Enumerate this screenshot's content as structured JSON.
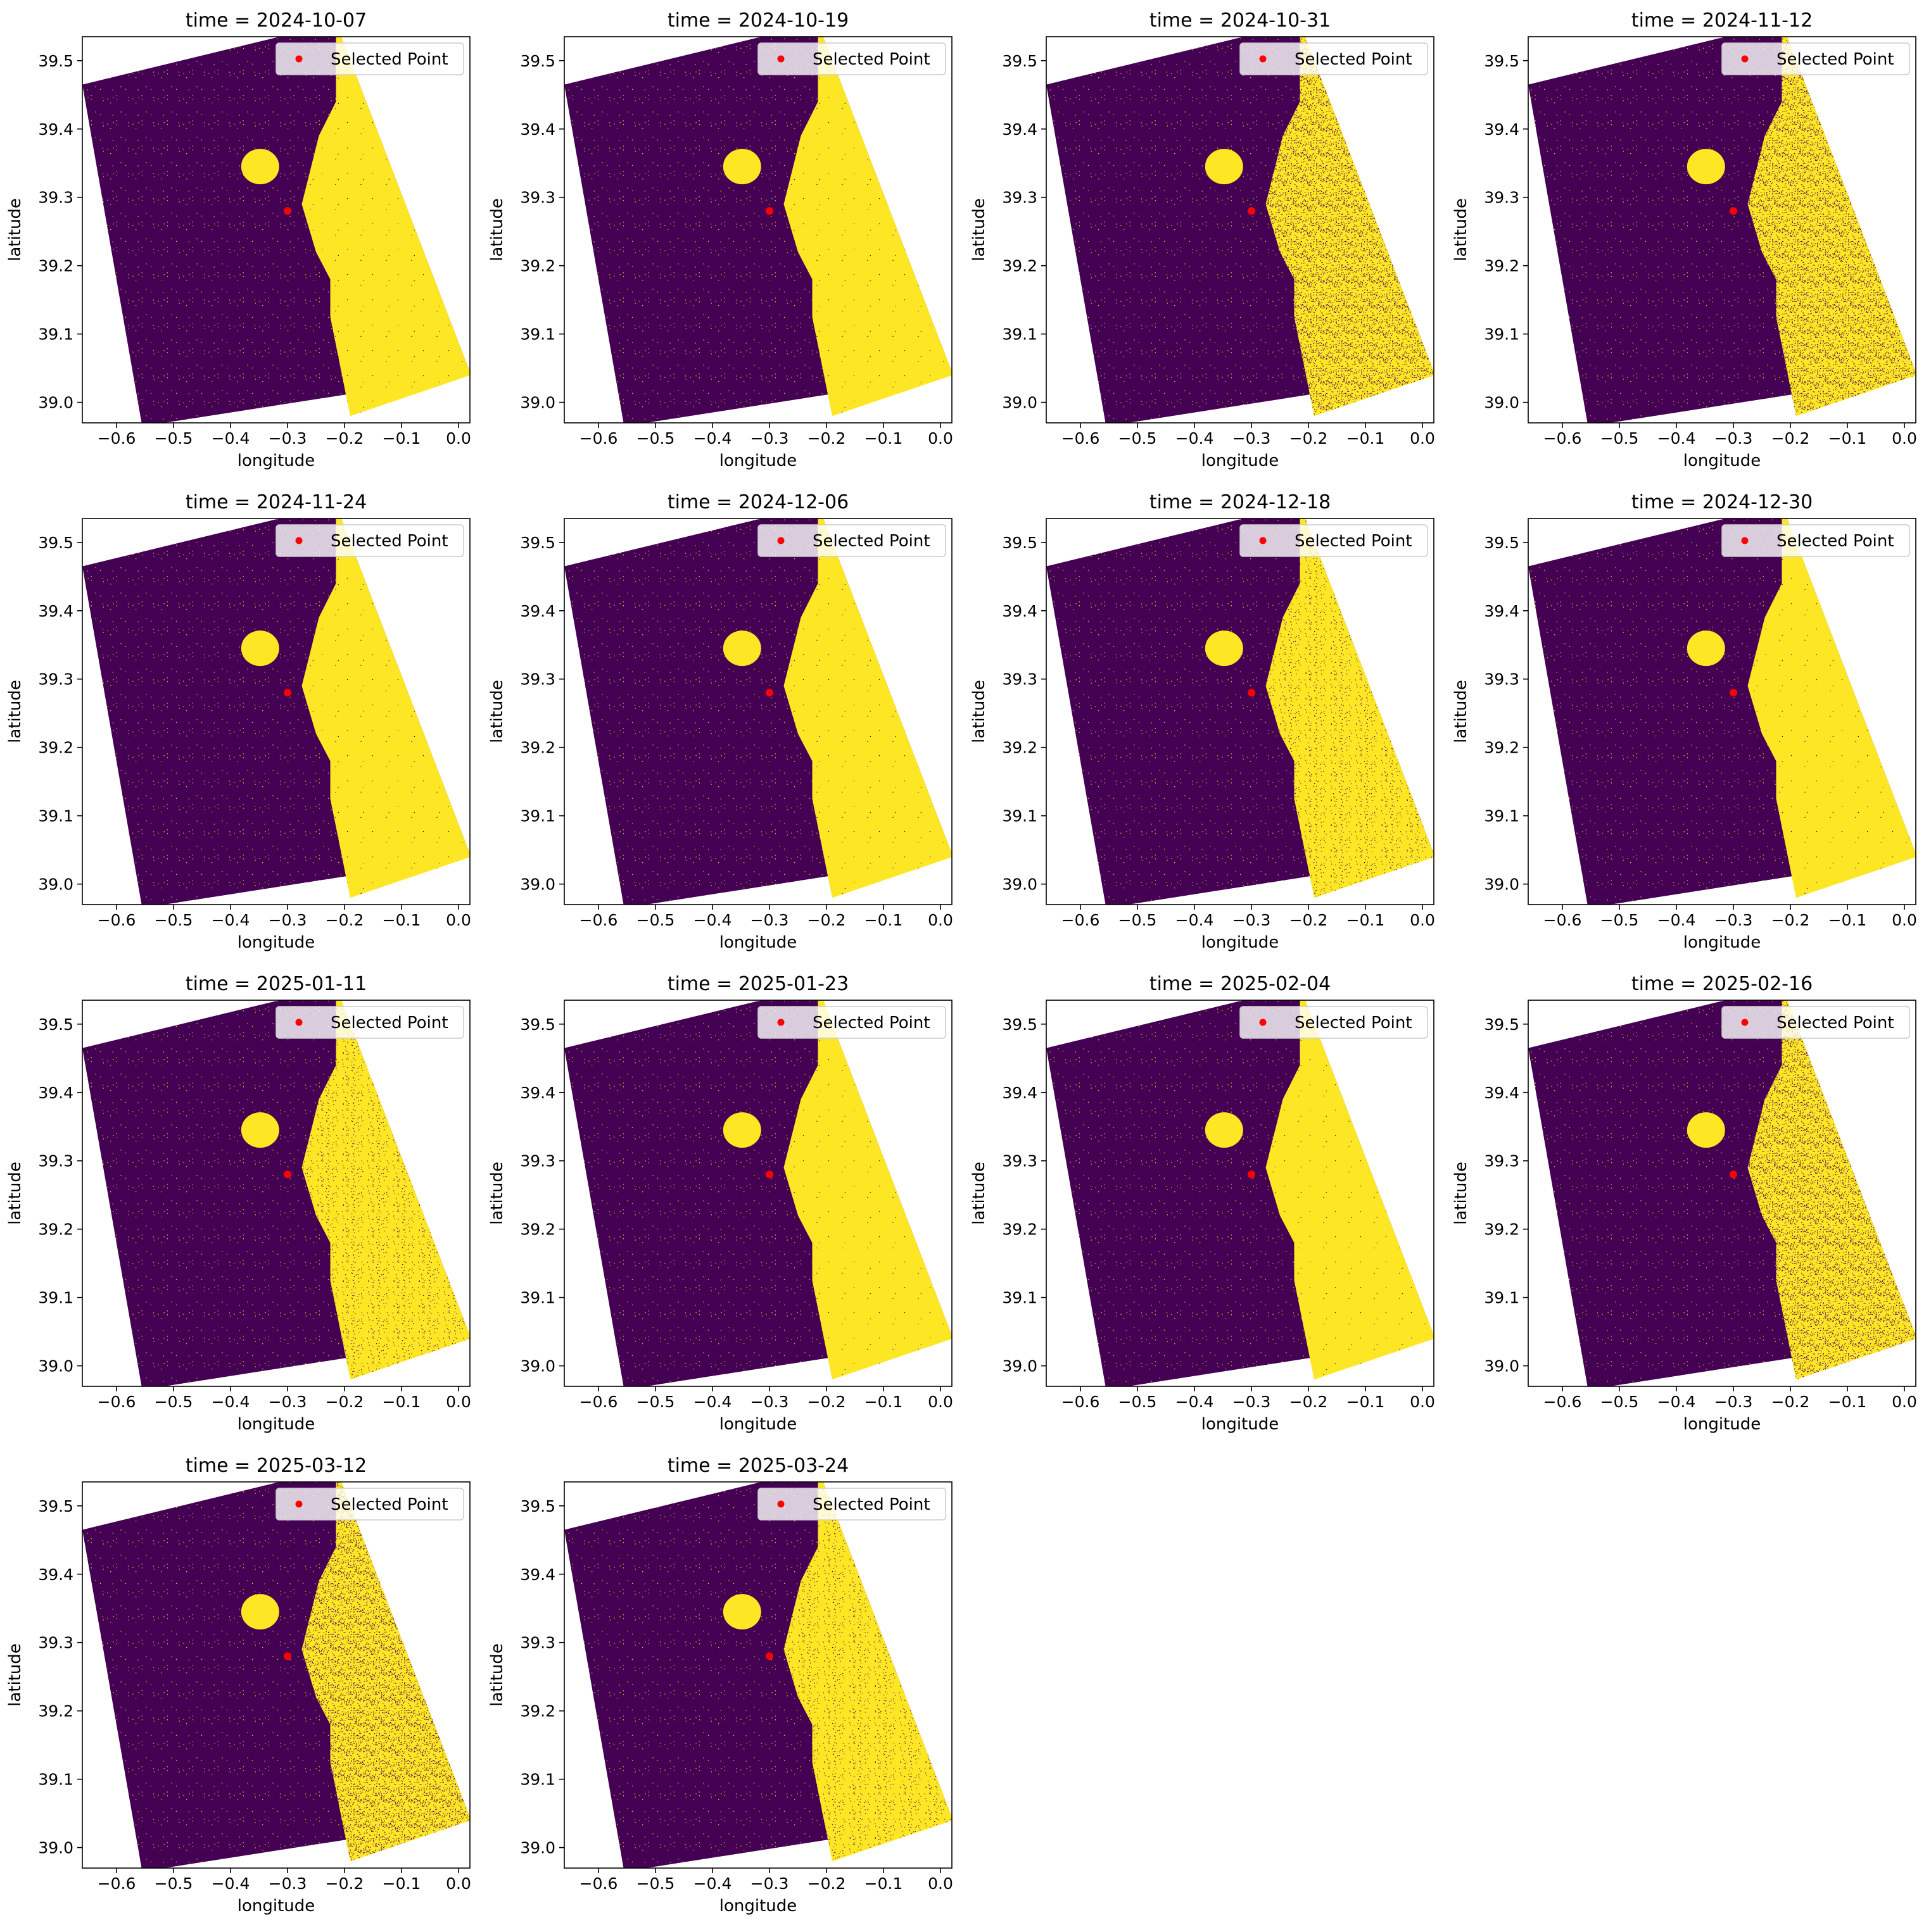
{
  "figure": {
    "background": "#ffffff",
    "colors": {
      "land": "#440154",
      "water": "#fde725",
      "point": "#ff0000"
    }
  },
  "chart_data": [
    {
      "type": "heatmap",
      "title": "time = 2024-10-07",
      "xlabel": "longitude",
      "ylabel": "latitude",
      "xlim": [
        -0.66,
        0.02
      ],
      "ylim": [
        38.97,
        39.535
      ],
      "xticks": [
        "−0.6",
        "−0.5",
        "−0.4",
        "−0.3",
        "−0.2",
        "−0.1",
        "0.0"
      ],
      "yticks": [
        "39.0",
        "39.1",
        "39.2",
        "39.3",
        "39.4",
        "39.5"
      ],
      "legend": "Selected Point",
      "legend_loc": "upper right",
      "point": {
        "lon": -0.3,
        "lat": 39.28
      },
      "speckle": "low"
    },
    {
      "type": "heatmap",
      "title": "time = 2024-10-19",
      "xlabel": "longitude",
      "ylabel": "latitude",
      "xlim": [
        -0.66,
        0.02
      ],
      "ylim": [
        38.97,
        39.535
      ],
      "xticks": [
        "−0.6",
        "−0.5",
        "−0.4",
        "−0.3",
        "−0.2",
        "−0.1",
        "0.0"
      ],
      "yticks": [
        "39.0",
        "39.1",
        "39.2",
        "39.3",
        "39.4",
        "39.5"
      ],
      "legend": "Selected Point",
      "legend_loc": "upper right",
      "point": {
        "lon": -0.3,
        "lat": 39.28
      },
      "speckle": "low"
    },
    {
      "type": "heatmap",
      "title": "time = 2024-10-31",
      "xlabel": "longitude",
      "ylabel": "latitude",
      "xlim": [
        -0.66,
        0.02
      ],
      "ylim": [
        38.97,
        39.535
      ],
      "xticks": [
        "−0.6",
        "−0.5",
        "−0.4",
        "−0.3",
        "−0.2",
        "−0.1",
        "0.0"
      ],
      "yticks": [
        "39.0",
        "39.1",
        "39.2",
        "39.3",
        "39.4",
        "39.5"
      ],
      "legend": "Selected Point",
      "legend_loc": "upper right",
      "point": {
        "lon": -0.3,
        "lat": 39.28
      },
      "speckle": "high"
    },
    {
      "type": "heatmap",
      "title": "time = 2024-11-12",
      "xlabel": "longitude",
      "ylabel": "latitude",
      "xlim": [
        -0.66,
        0.02
      ],
      "ylim": [
        38.97,
        39.535
      ],
      "xticks": [
        "−0.6",
        "−0.5",
        "−0.4",
        "−0.3",
        "−0.2",
        "−0.1",
        "0.0"
      ],
      "yticks": [
        "39.0",
        "39.1",
        "39.2",
        "39.3",
        "39.4",
        "39.5"
      ],
      "legend": "Selected Point",
      "legend_loc": "upper right",
      "point": {
        "lon": -0.3,
        "lat": 39.28
      },
      "speckle": "high"
    },
    {
      "type": "heatmap",
      "title": "time = 2024-11-24",
      "xlabel": "longitude",
      "ylabel": "latitude",
      "xlim": [
        -0.66,
        0.02
      ],
      "ylim": [
        38.97,
        39.535
      ],
      "xticks": [
        "−0.6",
        "−0.5",
        "−0.4",
        "−0.3",
        "−0.2",
        "−0.1",
        "0.0"
      ],
      "yticks": [
        "39.0",
        "39.1",
        "39.2",
        "39.3",
        "39.4",
        "39.5"
      ],
      "legend": "Selected Point",
      "legend_loc": "upper right",
      "point": {
        "lon": -0.3,
        "lat": 39.28
      },
      "speckle": "low"
    },
    {
      "type": "heatmap",
      "title": "time = 2024-12-06",
      "xlabel": "longitude",
      "ylabel": "latitude",
      "xlim": [
        -0.66,
        0.02
      ],
      "ylim": [
        38.97,
        39.535
      ],
      "xticks": [
        "−0.6",
        "−0.5",
        "−0.4",
        "−0.3",
        "−0.2",
        "−0.1",
        "0.0"
      ],
      "yticks": [
        "39.0",
        "39.1",
        "39.2",
        "39.3",
        "39.4",
        "39.5"
      ],
      "legend": "Selected Point",
      "legend_loc": "upper right",
      "point": {
        "lon": -0.3,
        "lat": 39.28
      },
      "speckle": "low"
    },
    {
      "type": "heatmap",
      "title": "time = 2024-12-18",
      "xlabel": "longitude",
      "ylabel": "latitude",
      "xlim": [
        -0.66,
        0.02
      ],
      "ylim": [
        38.97,
        39.535
      ],
      "xticks": [
        "−0.6",
        "−0.5",
        "−0.4",
        "−0.3",
        "−0.2",
        "−0.1",
        "0.0"
      ],
      "yticks": [
        "39.0",
        "39.1",
        "39.2",
        "39.3",
        "39.4",
        "39.5"
      ],
      "legend": "Selected Point",
      "legend_loc": "upper right",
      "point": {
        "lon": -0.3,
        "lat": 39.28
      },
      "speckle": "medium"
    },
    {
      "type": "heatmap",
      "title": "time = 2024-12-30",
      "xlabel": "longitude",
      "ylabel": "latitude",
      "xlim": [
        -0.66,
        0.02
      ],
      "ylim": [
        38.97,
        39.535
      ],
      "xticks": [
        "−0.6",
        "−0.5",
        "−0.4",
        "−0.3",
        "−0.2",
        "−0.1",
        "0.0"
      ],
      "yticks": [
        "39.0",
        "39.1",
        "39.2",
        "39.3",
        "39.4",
        "39.5"
      ],
      "legend": "Selected Point",
      "legend_loc": "upper right",
      "point": {
        "lon": -0.3,
        "lat": 39.28
      },
      "speckle": "low"
    },
    {
      "type": "heatmap",
      "title": "time = 2025-01-11",
      "xlabel": "longitude",
      "ylabel": "latitude",
      "xlim": [
        -0.66,
        0.02
      ],
      "ylim": [
        38.97,
        39.535
      ],
      "xticks": [
        "−0.6",
        "−0.5",
        "−0.4",
        "−0.3",
        "−0.2",
        "−0.1",
        "0.0"
      ],
      "yticks": [
        "39.0",
        "39.1",
        "39.2",
        "39.3",
        "39.4",
        "39.5"
      ],
      "legend": "Selected Point",
      "legend_loc": "upper right",
      "point": {
        "lon": -0.3,
        "lat": 39.28
      },
      "speckle": "medium"
    },
    {
      "type": "heatmap",
      "title": "time = 2025-01-23",
      "xlabel": "longitude",
      "ylabel": "latitude",
      "xlim": [
        -0.66,
        0.02
      ],
      "ylim": [
        38.97,
        39.535
      ],
      "xticks": [
        "−0.6",
        "−0.5",
        "−0.4",
        "−0.3",
        "−0.2",
        "−0.1",
        "0.0"
      ],
      "yticks": [
        "39.0",
        "39.1",
        "39.2",
        "39.3",
        "39.4",
        "39.5"
      ],
      "legend": "Selected Point",
      "legend_loc": "upper right",
      "point": {
        "lon": -0.3,
        "lat": 39.28
      },
      "speckle": "low"
    },
    {
      "type": "heatmap",
      "title": "time = 2025-02-04",
      "xlabel": "longitude",
      "ylabel": "latitude",
      "xlim": [
        -0.66,
        0.02
      ],
      "ylim": [
        38.97,
        39.535
      ],
      "xticks": [
        "−0.6",
        "−0.5",
        "−0.4",
        "−0.3",
        "−0.2",
        "−0.1",
        "0.0"
      ],
      "yticks": [
        "39.0",
        "39.1",
        "39.2",
        "39.3",
        "39.4",
        "39.5"
      ],
      "legend": "Selected Point",
      "legend_loc": "upper right",
      "point": {
        "lon": -0.3,
        "lat": 39.28
      },
      "speckle": "low"
    },
    {
      "type": "heatmap",
      "title": "time = 2025-02-16",
      "xlabel": "longitude",
      "ylabel": "latitude",
      "xlim": [
        -0.66,
        0.02
      ],
      "ylim": [
        38.97,
        39.535
      ],
      "xticks": [
        "−0.6",
        "−0.5",
        "−0.4",
        "−0.3",
        "−0.2",
        "−0.1",
        "0.0"
      ],
      "yticks": [
        "39.0",
        "39.1",
        "39.2",
        "39.3",
        "39.4",
        "39.5"
      ],
      "legend": "Selected Point",
      "legend_loc": "upper right",
      "point": {
        "lon": -0.3,
        "lat": 39.28
      },
      "speckle": "high"
    },
    {
      "type": "heatmap",
      "title": "time = 2025-03-12",
      "xlabel": "longitude",
      "ylabel": "latitude",
      "xlim": [
        -0.66,
        0.02
      ],
      "ylim": [
        38.97,
        39.535
      ],
      "xticks": [
        "−0.6",
        "−0.5",
        "−0.4",
        "−0.3",
        "−0.2",
        "−0.1",
        "0.0"
      ],
      "yticks": [
        "39.0",
        "39.1",
        "39.2",
        "39.3",
        "39.4",
        "39.5"
      ],
      "legend": "Selected Point",
      "legend_loc": "upper right",
      "point": {
        "lon": -0.3,
        "lat": 39.28
      },
      "speckle": "high"
    },
    {
      "type": "heatmap",
      "title": "time = 2025-03-24",
      "xlabel": "longitude",
      "ylabel": "latitude",
      "xlim": [
        -0.66,
        0.02
      ],
      "ylim": [
        38.97,
        39.535
      ],
      "xticks": [
        "−0.6",
        "−0.5",
        "−0.4",
        "−0.3",
        "−0.2",
        "−0.1",
        "0.0"
      ],
      "yticks": [
        "39.0",
        "39.1",
        "39.2",
        "39.3",
        "39.4",
        "39.5"
      ],
      "legend": "Selected Point",
      "legend_loc": "upper right",
      "point": {
        "lon": -0.3,
        "lat": 39.28
      },
      "speckle": "medium"
    }
  ]
}
